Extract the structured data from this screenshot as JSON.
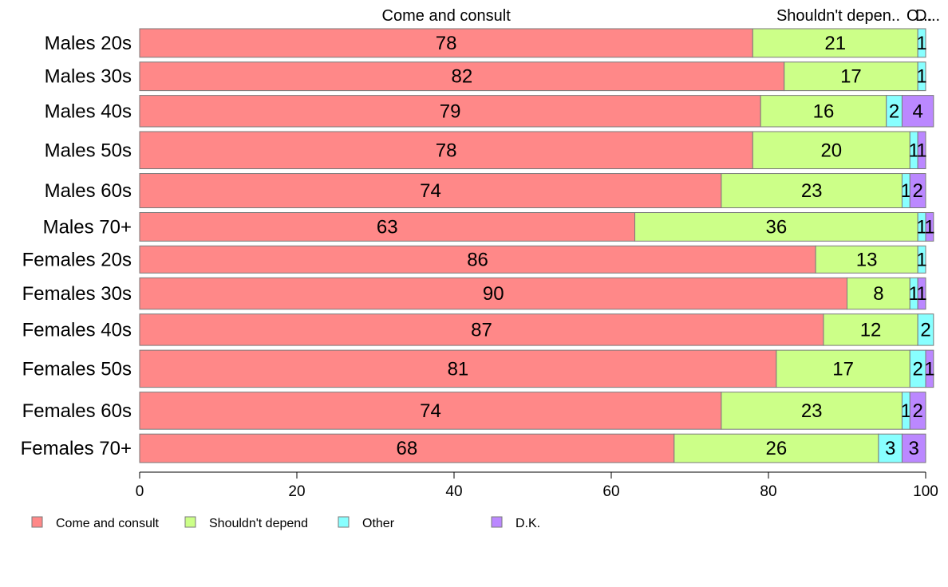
{
  "chart_data": {
    "type": "bar",
    "orientation": "horizontal",
    "stacked": true,
    "title": "",
    "xlabel": "",
    "ylabel": "",
    "xlim": [
      0,
      100
    ],
    "x_ticks": [
      "0",
      "20",
      "40",
      "60",
      "80",
      "100"
    ],
    "grid": false,
    "legend_placement": "bottom-left",
    "top_labels": [
      "Come and consult",
      "Shouldn't depen..",
      "O...",
      "D..."
    ],
    "categories": [
      "Males 20s",
      "Males 30s",
      "Males 40s",
      "Males 50s",
      "Males 60s",
      "Males 70+",
      "Females 20s",
      "Females 30s",
      "Females 40s",
      "Females 50s",
      "Females 60s",
      "Females 70+"
    ],
    "series": [
      {
        "name": "Come and consult",
        "color": "#ff8888",
        "values": [
          78,
          82,
          79,
          78,
          74,
          63,
          86,
          90,
          87,
          81,
          74,
          68
        ]
      },
      {
        "name": "Shouldn't depend",
        "color": "#ccff88",
        "values": [
          21,
          17,
          16,
          20,
          23,
          36,
          13,
          8,
          12,
          17,
          23,
          26
        ]
      },
      {
        "name": "Other",
        "color": "#88ffff",
        "values": [
          1,
          1,
          2,
          1,
          1,
          1,
          1,
          1,
          2,
          2,
          1,
          3
        ]
      },
      {
        "name": "D.K.",
        "color": "#bb88ff",
        "values": [
          0,
          0,
          4,
          1,
          2,
          1,
          0,
          1,
          0,
          1,
          2,
          3
        ]
      }
    ],
    "bar_weights": [
      1.0,
      1.0,
      1.1,
      1.3,
      1.2,
      1.0,
      0.95,
      1.1,
      1.1,
      1.3,
      1.3,
      1.0
    ]
  }
}
